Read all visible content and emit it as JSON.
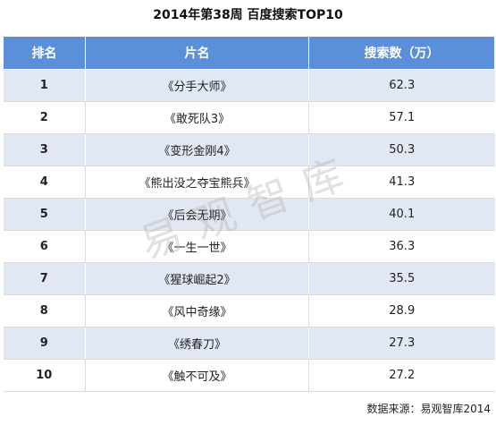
{
  "title": "2014年第38周 百度搜索TOP10",
  "columns": {
    "rank": "排名",
    "film": "片名",
    "value": "搜索数（万）"
  },
  "watermark": "易观智库",
  "source": "数据来源：易观智库2014",
  "chart_data": {
    "type": "table",
    "title": "2014年第38周 百度搜索TOP10",
    "headers": [
      "排名",
      "片名",
      "搜索数（万）"
    ],
    "rows": [
      {
        "rank": "1",
        "film": "《分手大师》",
        "value": "62.3"
      },
      {
        "rank": "2",
        "film": "《敢死队3》",
        "value": "57.1"
      },
      {
        "rank": "3",
        "film": "《变形金刚4》",
        "value": "50.3"
      },
      {
        "rank": "4",
        "film": "《熊出没之夺宝熊兵》",
        "value": "41.3"
      },
      {
        "rank": "5",
        "film": "《后会无期》",
        "value": "40.1"
      },
      {
        "rank": "6",
        "film": "《一生一世》",
        "value": "36.3"
      },
      {
        "rank": "7",
        "film": "《猩球崛起2》",
        "value": "35.5"
      },
      {
        "rank": "8",
        "film": "《风中奇缘》",
        "value": "28.9"
      },
      {
        "rank": "9",
        "film": "《绣春刀》",
        "value": "27.3"
      },
      {
        "rank": "10",
        "film": "《触不可及》",
        "value": "27.2"
      }
    ]
  }
}
